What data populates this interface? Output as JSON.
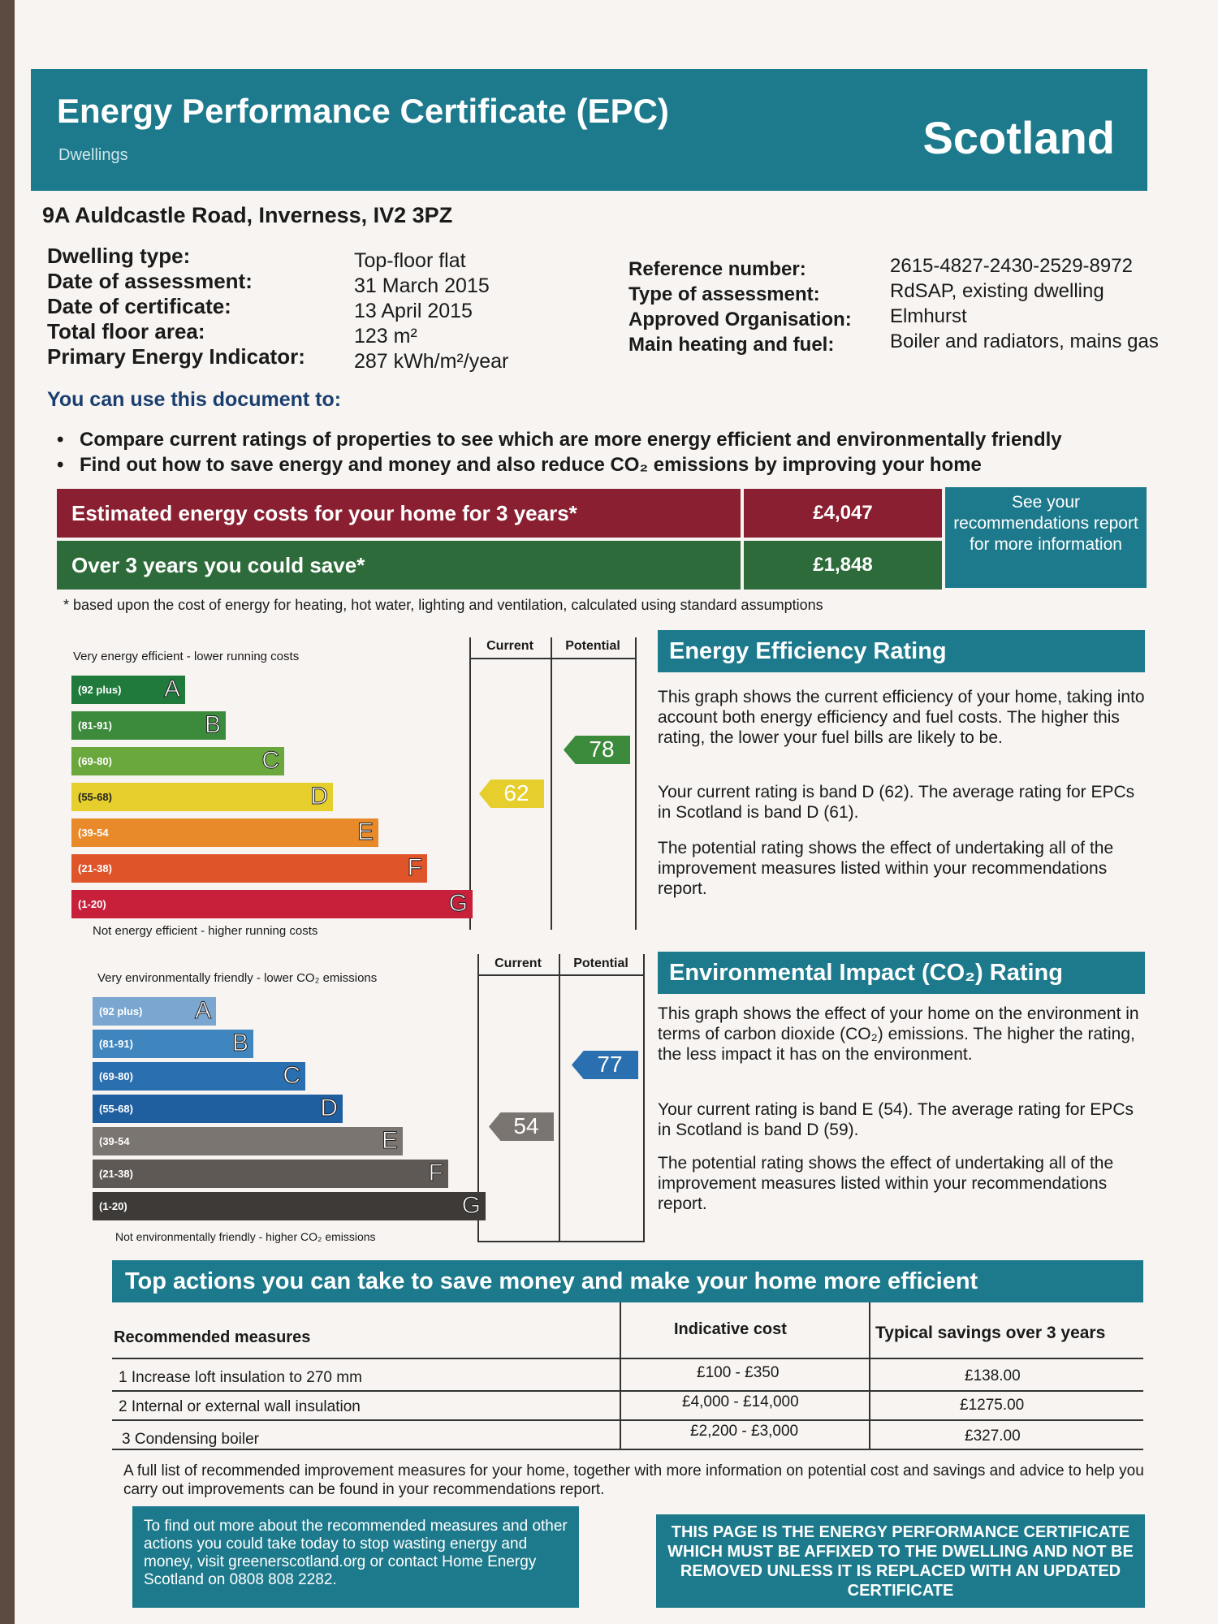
{
  "header": {
    "title": "Energy Performance Certificate (EPC)",
    "subtitle": "Dwellings",
    "country": "Scotland"
  },
  "address": "9A Auldcastle Road, Inverness, IV2 3PZ",
  "details_left": [
    {
      "label": "Dwelling type:",
      "value": "Top-floor flat"
    },
    {
      "label": "Date of assessment:",
      "value": "31 March 2015"
    },
    {
      "label": "Date of certificate:",
      "value": "13 April 2015"
    },
    {
      "label": "Total floor area:",
      "value": "123 m²"
    },
    {
      "label": "Primary Energy Indicator:",
      "value": "287 kWh/m²/year"
    }
  ],
  "details_right": [
    {
      "label": "Reference number:",
      "value": "2615-4827-2430-2529-8972"
    },
    {
      "label": "Type of assessment:",
      "value": "RdSAP, existing dwelling"
    },
    {
      "label": "Approved Organisation:",
      "value": "Elmhurst"
    },
    {
      "label": "Main heating and fuel:",
      "value": "Boiler and radiators, mains gas"
    }
  ],
  "use_title": "You can use this document to:",
  "bullets": [
    "Compare current ratings of properties to see which are more energy efficient and environmentally friendly",
    "Find out how to save energy and money and also reduce CO₂ emissions by improving your home"
  ],
  "costs": {
    "estimated_label": "Estimated energy costs for your home for 3 years*",
    "estimated_value": "£4,047",
    "save_label": "Over 3 years you could save*",
    "save_value": "£1,848",
    "see_box": "See your recommendations report for more information",
    "footnote": "* based upon the cost of energy for heating, hot water, lighting and ventilation, calculated using standard assumptions"
  },
  "col_current": "Current",
  "col_potential": "Potential",
  "ranges": [
    "(92 plus)",
    "(81-91)",
    "(69-80)",
    "(55-68)",
    "(39-54",
    "(21-38)",
    "(1-20)"
  ],
  "ee_ranges": [
    "(92 plus)",
    "(81-91)",
    "(69-80)",
    "(55-68)",
    "(39-54",
    "(21-38)",
    "(1-20)"
  ],
  "letters": [
    "A",
    "B",
    "C",
    "D",
    "E",
    "F",
    "G"
  ],
  "ee": {
    "top_text": "Very energy efficient - lower running costs",
    "bottom_text": "Not energy efficient - higher running costs",
    "current": "62",
    "potential": "78",
    "colors": [
      "#1f7a3c",
      "#3c8a3c",
      "#6aa73c",
      "#e6cf2c",
      "#e98a2a",
      "#e0542a",
      "#c8203a"
    ],
    "current_color": "#e6cf2c",
    "potential_color": "#3c8a3c"
  },
  "ei": {
    "top_text": "Very environmentally friendly - lower CO₂ emissions",
    "bottom_text": "Not environmentally friendly - higher CO₂ emissions",
    "current": "54",
    "potential": "77",
    "colors": [
      "#7aa6cf",
      "#3f86bf",
      "#2a6fb0",
      "#1f5fa0",
      "#7a7570",
      "#5e5955",
      "#3d3a38"
    ],
    "current_color": "#7a7570",
    "potential_color": "#2a6fb0"
  },
  "ee_section": {
    "title": "Energy Efficiency Rating",
    "p1": "This graph shows the current efficiency of your home, taking into account both energy efficiency and fuel costs. The higher this rating, the lower your fuel bills are likely to be.",
    "p2": "Your current rating is band D (62). The average rating for EPCs in Scotland is band D (61).",
    "p3": "The potential rating shows the effect of undertaking all of the improvement measures listed within your recommendations report."
  },
  "ei_section": {
    "title": "Environmental Impact (CO₂) Rating",
    "p1": "This graph shows the effect of your home on the environment in terms of carbon dioxide (CO₂) emissions. The higher the rating, the less impact it has on the environment.",
    "p2": "Your current rating is band E (54). The average rating for EPCs in Scotland is band D (59).",
    "p3": "The potential rating shows the effect of undertaking all of the improvement measures listed within your recommendations report."
  },
  "actions": {
    "title": "Top actions you can take to save money and make your home more efficient",
    "col_measures": "Recommended measures",
    "col_cost": "Indicative cost",
    "col_savings": "Typical savings over 3 years",
    "rows": [
      {
        "measure": "1 Increase loft insulation to 270 mm",
        "cost": "£100 - £350",
        "savings": "£138.00"
      },
      {
        "measure": "2 Internal or external wall insulation",
        "cost": "£4,000 - £14,000",
        "savings": "£1275.00"
      },
      {
        "measure": "3 Condensing boiler",
        "cost": "£2,200 - £3,000",
        "savings": "£327.00"
      }
    ],
    "full_list": "A full list of recommended improvement measures for your home, together with more information on potential cost and savings and advice to help you carry out improvements can be found in your recommendations report."
  },
  "footer": {
    "left": "To find out more about the recommended measures and other actions you could take today to stop wasting energy and money, visit greenerscotland.org or contact Home Energy Scotland on 0808 808 2282.",
    "right": "THIS PAGE IS THE ENERGY PERFORMANCE CERTIFICATE WHICH MUST BE AFFIXED TO THE DWELLING AND NOT BE REMOVED UNLESS IT IS REPLACED WITH AN UPDATED CERTIFICATE"
  }
}
